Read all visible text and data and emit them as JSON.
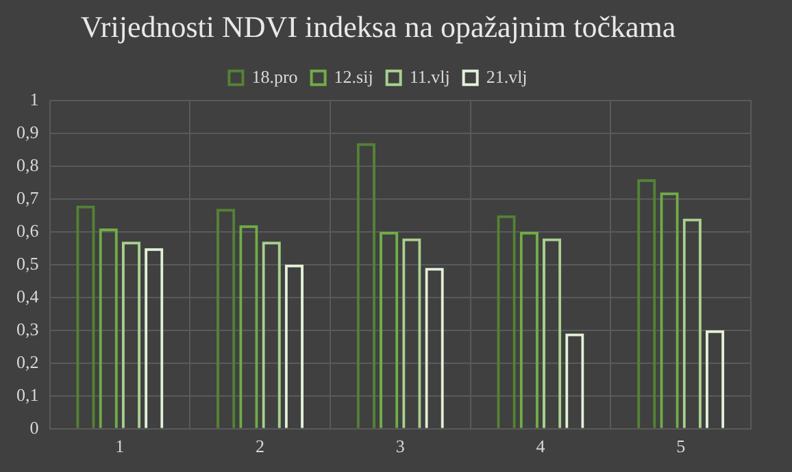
{
  "chart_data": {
    "type": "bar",
    "title": "Vrijednosti NDVI indeksa na opažajnim točkama",
    "categories": [
      "1",
      "2",
      "3",
      "4",
      "5"
    ],
    "series": [
      {
        "name": "18.pro",
        "color": "#548235",
        "values": [
          0.68,
          0.67,
          0.87,
          0.65,
          0.76
        ]
      },
      {
        "name": "12.sij",
        "color": "#70ad47",
        "values": [
          0.61,
          0.62,
          0.6,
          0.6,
          0.72
        ]
      },
      {
        "name": "11.vlj",
        "color": "#a9d18e",
        "values": [
          0.57,
          0.57,
          0.58,
          0.58,
          0.64
        ]
      },
      {
        "name": "21.vlj",
        "color": "#e2f0d9",
        "values": [
          0.55,
          0.5,
          0.49,
          0.29,
          0.3
        ]
      }
    ],
    "ylim": [
      0,
      1
    ],
    "yticks": [
      0,
      {
        "value": 0.1,
        "label": "0,1"
      },
      {
        "value": 0.2,
        "label": "0,2"
      },
      {
        "value": 0.3,
        "label": "0,3"
      },
      {
        "value": 0.4,
        "label": "0,4"
      },
      {
        "value": 0.5,
        "label": "0,5"
      },
      {
        "value": 0.6,
        "label": "0,6"
      },
      {
        "value": 0.7,
        "label": "0,7"
      },
      {
        "value": 0.8,
        "label": "0,8"
      },
      {
        "value": 0.9,
        "label": "0,9"
      },
      1
    ],
    "grid": true,
    "legend": "top"
  }
}
